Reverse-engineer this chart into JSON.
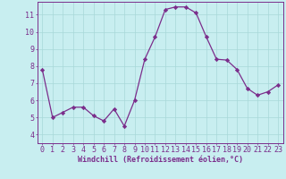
{
  "x": [
    0,
    1,
    2,
    3,
    4,
    5,
    6,
    7,
    8,
    9,
    10,
    11,
    12,
    13,
    14,
    15,
    16,
    17,
    18,
    19,
    20,
    21,
    22,
    23
  ],
  "y": [
    7.8,
    5.0,
    5.3,
    5.6,
    5.6,
    5.1,
    4.8,
    5.5,
    4.5,
    6.0,
    8.4,
    9.7,
    11.3,
    11.45,
    11.45,
    11.1,
    9.7,
    8.4,
    8.35,
    7.8,
    6.7,
    6.3,
    6.5,
    6.9
  ],
  "line_color": "#7b2d8b",
  "marker": "D",
  "marker_size": 2.2,
  "bg_color": "#c8eef0",
  "grid_color": "#a8d8d8",
  "xlabel": "Windchill (Refroidissement éolien,°C)",
  "xlim": [
    -0.5,
    23.5
  ],
  "ylim": [
    3.5,
    11.75
  ],
  "yticks": [
    4,
    5,
    6,
    7,
    8,
    9,
    10,
    11
  ],
  "xticks": [
    0,
    1,
    2,
    3,
    4,
    5,
    6,
    7,
    8,
    9,
    10,
    11,
    12,
    13,
    14,
    15,
    16,
    17,
    18,
    19,
    20,
    21,
    22,
    23
  ],
  "tick_color": "#7b2d8b",
  "label_color": "#7b2d8b",
  "spine_color": "#7b2d8b",
  "xlabel_fontsize": 6.0,
  "tick_fontsize": 6.0
}
